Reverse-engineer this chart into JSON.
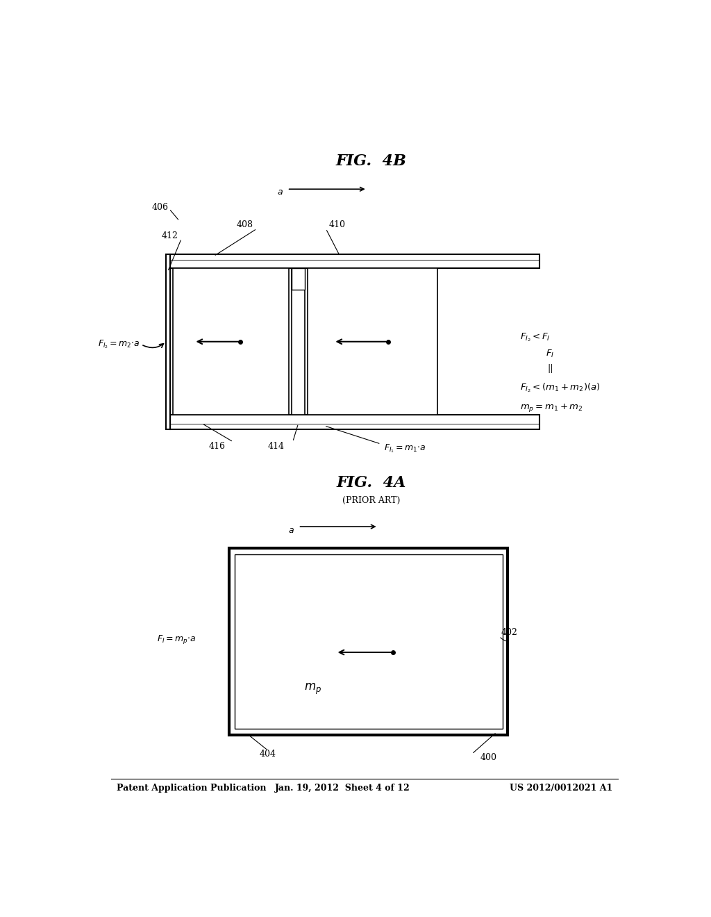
{
  "bg_color": "#ffffff",
  "header_left": "Patent Application Publication",
  "header_mid": "Jan. 19, 2012  Sheet 4 of 12",
  "header_right": "US 2012/0012021 A1"
}
